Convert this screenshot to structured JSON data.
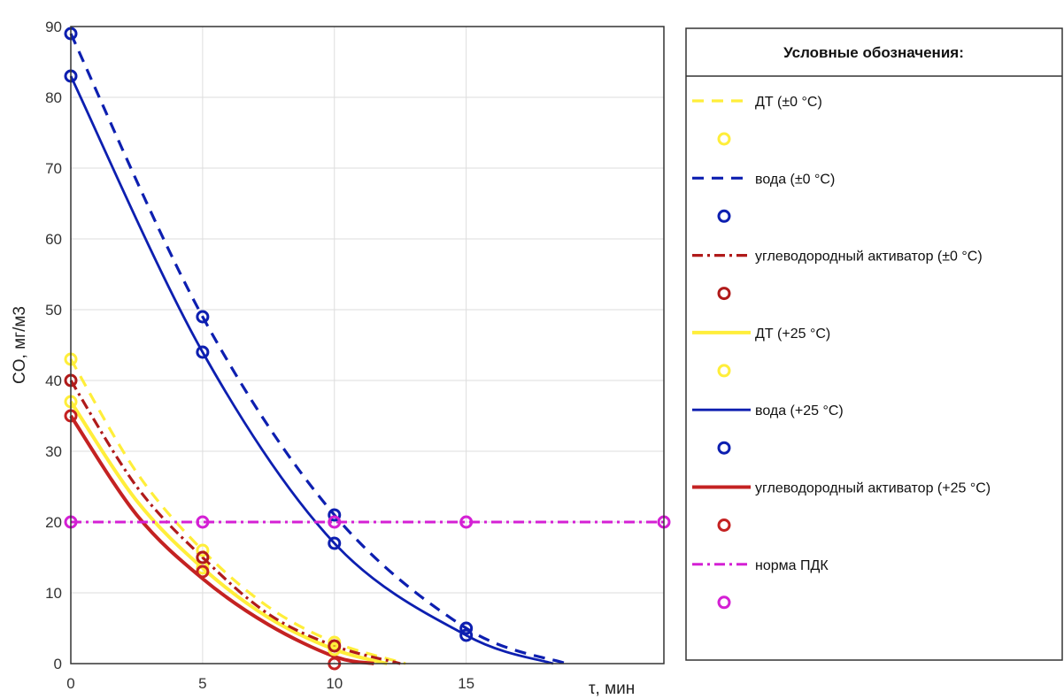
{
  "chart_data": {
    "type": "line",
    "title": "",
    "xlabel": "τ, мин",
    "ylabel": "CO, мг/м3",
    "xlim": [
      0,
      22.5
    ],
    "ylim": [
      0,
      90
    ],
    "xticks": [
      0,
      5,
      10,
      15
    ],
    "yticks": [
      0,
      10,
      20,
      30,
      40,
      50,
      60,
      70,
      80,
      90
    ],
    "grid": true,
    "legend_title": "Условные обозначения:",
    "legend_position": "right",
    "series": [
      {
        "name": "ДТ (±0 °С)",
        "color": "#ffee3a",
        "style": "dashed",
        "width": 3.2,
        "fit": {
          "x": [
            0,
            2.5,
            5,
            7.5,
            10,
            12.7
          ],
          "y": [
            43,
            27,
            16,
            8,
            3,
            0
          ]
        },
        "points": {
          "x": [
            0,
            5,
            10
          ],
          "y": [
            43,
            16,
            3
          ]
        }
      },
      {
        "name": "вода (±0 °С)",
        "color": "#0d1fb0",
        "style": "dashed",
        "width": 3.2,
        "fit": {
          "x": [
            0,
            5,
            10,
            15,
            18.8
          ],
          "y": [
            89,
            49,
            21,
            5,
            0
          ]
        },
        "points": {
          "x": [
            0,
            5,
            10,
            15
          ],
          "y": [
            89,
            49,
            21,
            5
          ]
        }
      },
      {
        "name": "углеводородный активатор (±0 °С)",
        "color": "#b01a1a",
        "style": "dashdot",
        "width": 3.2,
        "fit": {
          "x": [
            0,
            2.5,
            5,
            7.5,
            10,
            12.5
          ],
          "y": [
            40,
            25,
            15,
            7,
            2.5,
            0
          ]
        },
        "points": {
          "x": [
            0,
            5,
            10
          ],
          "y": [
            40,
            15,
            2.5
          ]
        }
      },
      {
        "name": "ДТ (+25 °С)",
        "color": "#ffee3a",
        "style": "solid",
        "width": 4,
        "fit": {
          "x": [
            0,
            2.5,
            5,
            7.5,
            10,
            12
          ],
          "y": [
            37,
            23,
            13.5,
            6.5,
            2,
            0
          ]
        },
        "points": {
          "x": [
            0,
            5,
            10
          ],
          "y": [
            37,
            13.5,
            2
          ]
        }
      },
      {
        "name": "вода (+25 °С)",
        "color": "#0d1fb0",
        "style": "solid",
        "width": 2.8,
        "fit": {
          "x": [
            0,
            5,
            10,
            15,
            18.3
          ],
          "y": [
            83,
            44,
            17,
            4,
            0
          ]
        },
        "points": {
          "x": [
            0,
            5,
            10,
            15
          ],
          "y": [
            83,
            44,
            17,
            4
          ]
        }
      },
      {
        "name": "углеводородный активатор (+25 °С)",
        "color": "#c42222",
        "style": "solid",
        "width": 4,
        "fit": {
          "x": [
            0,
            2.5,
            5,
            7.5,
            10,
            11.5
          ],
          "y": [
            35,
            21,
            12,
            5.5,
            1,
            0
          ]
        },
        "points": {
          "x": [
            0,
            5,
            10
          ],
          "y": [
            35,
            13,
            0
          ]
        }
      },
      {
        "name": "норма ПДК",
        "color": "#d420d4",
        "style": "dashdot",
        "width": 3,
        "fit": {
          "x": [
            0,
            22.5
          ],
          "y": [
            20,
            20
          ]
        },
        "points": {
          "x": [
            0,
            5,
            10,
            15,
            22.5
          ],
          "y": [
            20,
            20,
            20,
            20,
            20
          ]
        }
      }
    ]
  }
}
